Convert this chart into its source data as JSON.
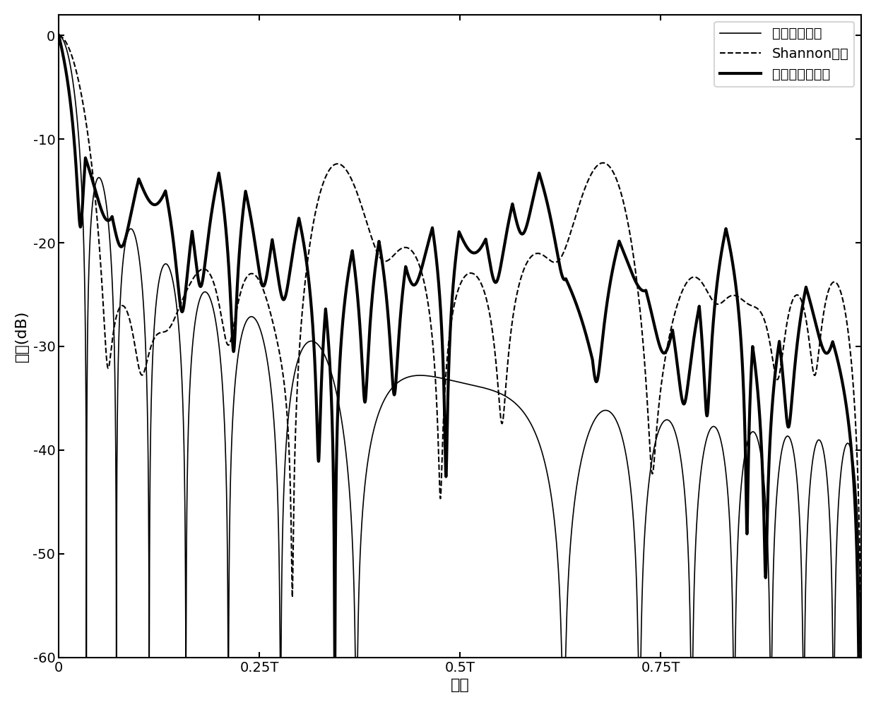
{
  "title": "",
  "xlabel": "延时",
  "ylabel": "功率(dB)",
  "xlim": [
    0,
    1.0
  ],
  "ylim": [
    -60,
    2
  ],
  "xticks": [
    0,
    0.25,
    0.5,
    0.75
  ],
  "xticklabels": [
    "0",
    "0.25T",
    "0.5T",
    "0.75T"
  ],
  "yticks": [
    -60,
    -50,
    -40,
    -30,
    -20,
    -10,
    0
  ],
  "legend_labels": [
    "本发明设计波形",
    "Shannon波形",
    "线性调频信号"
  ],
  "background_color": "#ffffff",
  "font_size": 14
}
